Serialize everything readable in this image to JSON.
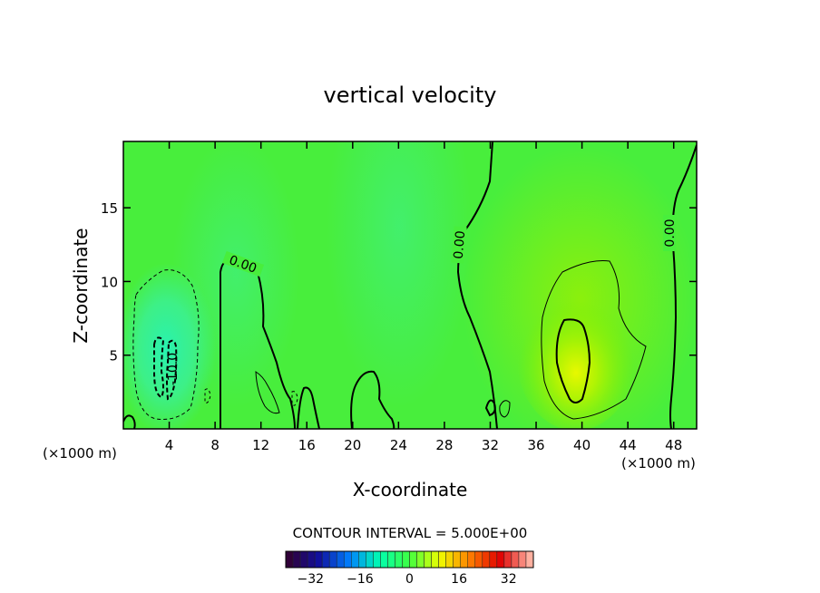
{
  "chart_data": {
    "type": "heatmap",
    "title": "vertical velocity",
    "xlabel": "X-coordinate",
    "ylabel": "Z-coordinate",
    "x_units": "(×1000 m)",
    "z_units": "(×1000 m)",
    "xlim": [
      0,
      50
    ],
    "ylim": [
      0,
      19.5
    ],
    "x_ticks": [
      4,
      8,
      12,
      16,
      20,
      24,
      28,
      32,
      36,
      40,
      44,
      48
    ],
    "y_ticks": [
      5,
      10,
      15
    ],
    "contour_interval_text": "CONTOUR INTERVAL = 5.000E+00",
    "contour_labels": [
      {
        "text": "0.00",
        "x": 10.2,
        "z": 11.1
      },
      {
        "text": "0.00",
        "x": 29.0,
        "z": 12.5
      },
      {
        "text": "0.00",
        "x": 47.0,
        "z": 13.5
      },
      {
        "text": "-10.0",
        "x": 4.4,
        "z": 3.8
      }
    ],
    "features": [
      {
        "name": "downdraft",
        "x_center": 3.8,
        "z_center": 5.0,
        "min_value": -12
      },
      {
        "name": "updraft",
        "x_center": 40.0,
        "z_center": 5.0,
        "max_value": 14
      }
    ],
    "colorbar": {
      "range": [
        -40,
        40
      ],
      "ticks": [
        -32,
        -16,
        0,
        16,
        32
      ],
      "colors": [
        "#300038",
        "#1010a0",
        "#0080ff",
        "#00ffb0",
        "#40ff40",
        "#f0ff00",
        "#ff8000",
        "#e00000",
        "#ffb0a0"
      ]
    }
  }
}
